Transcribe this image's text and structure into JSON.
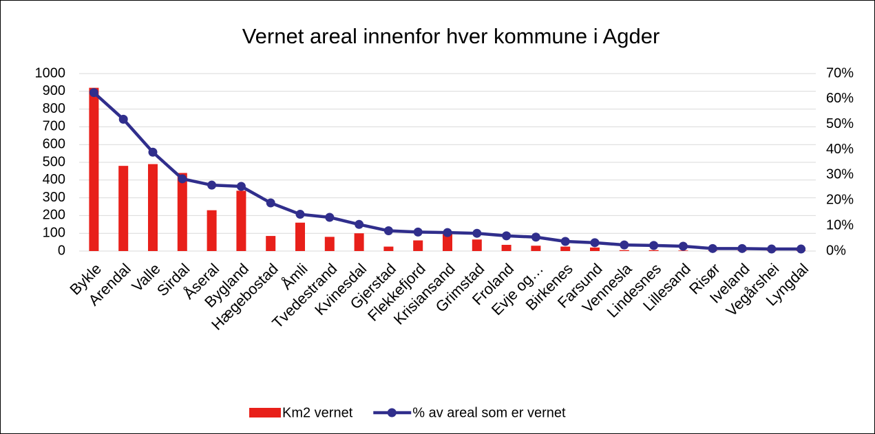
{
  "chart_data": {
    "type": "combo",
    "title": "Vernet areal innenfor hver kommune i Agder",
    "categories": [
      "Bykle",
      "Arendal",
      "Valle",
      "Sirdal",
      "Åseral",
      "Bygland",
      "Hægebostad",
      "Åmli",
      "Tvedestrand",
      "Kvinesdal",
      "Gjerstad",
      "Flekkefjord",
      "Krisiansand",
      "Grimstad",
      "Froland",
      "Evje og…",
      "Birkenes",
      "Farsund",
      "Vennesla",
      "Lindesnes",
      "Lillesand",
      "Risør",
      "Iveland",
      "Vegårshei",
      "Lyngdal"
    ],
    "series": [
      {
        "name": "Km2 vernet",
        "type": "bar",
        "color": "#e8201a",
        "values": [
          920,
          480,
          490,
          440,
          230,
          340,
          85,
          160,
          80,
          100,
          25,
          60,
          95,
          65,
          35,
          30,
          25,
          20,
          5,
          5,
          3,
          2,
          2,
          2,
          2
        ]
      },
      {
        "name": "% av areal som er vernet",
        "type": "line",
        "axis": "y2",
        "color": "#302e8c",
        "values": [
          62.5,
          52,
          39,
          28.5,
          26,
          25.5,
          19,
          14.5,
          13.3,
          10.5,
          8,
          7.5,
          7.3,
          7,
          6,
          5.5,
          3.8,
          3.3,
          2.4,
          2.2,
          1.9,
          1,
          1,
          0.8,
          0.8
        ]
      }
    ],
    "ylim": [
      0,
      1000
    ],
    "yticks": [
      0,
      100,
      200,
      300,
      400,
      500,
      600,
      700,
      800,
      900,
      1000
    ],
    "y2lim": [
      0,
      70
    ],
    "y2ticks": [
      {
        "value": 0,
        "label": "0%"
      },
      {
        "value": 10,
        "label": "10%"
      },
      {
        "value": 20,
        "label": "20%"
      },
      {
        "value": 30,
        "label": "30%"
      },
      {
        "value": 40,
        "label": "40%"
      },
      {
        "value": 50,
        "label": "50%"
      },
      {
        "value": 60,
        "label": "60%"
      },
      {
        "value": 70,
        "label": "70%"
      }
    ],
    "grid": true,
    "legend": "bottom"
  }
}
